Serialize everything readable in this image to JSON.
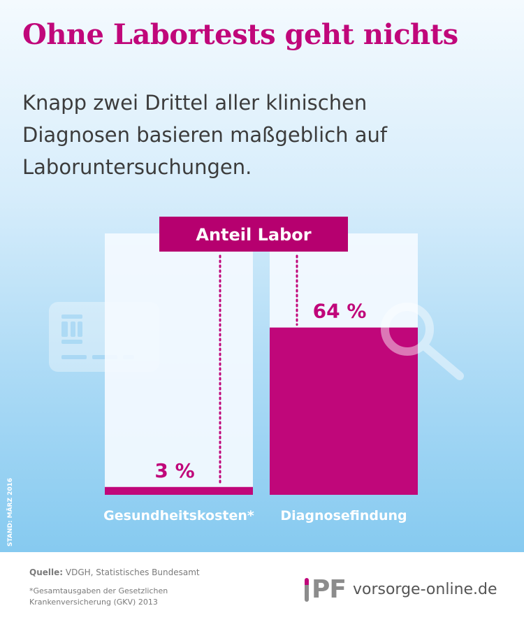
{
  "title": "Ohne Labortests geht nichts",
  "subtitle": "Knapp zwei Drittel aller klinischen Diagnosen basieren maßgeblich auf Laboruntersuchungen.",
  "chart_data": {
    "type": "bar",
    "legend_label": "Anteil Labor",
    "categories": [
      "Gesundheitskosten*",
      "Diagnosefindung"
    ],
    "values": [
      3,
      64
    ],
    "value_labels": [
      "3 %",
      "64 %"
    ],
    "unit": "%",
    "ylim": [
      0,
      100
    ],
    "grid": false
  },
  "stand": "STAND: MÄRZ 2016",
  "footer": {
    "source_label": "Quelle:",
    "source_text": "VDGH, Statistisches Bundesamt",
    "footnote": "*Gesamtausgaben der Gesetzlichen Krankenversicherung (GKV) 2013",
    "logo_text": "PF",
    "website": "vorsorge-online.de"
  },
  "colors": {
    "accent": "#c0077a",
    "column_background": "#f4faff",
    "sky_top": "#f4fafe",
    "sky_bottom": "#86caf0",
    "label_white": "#ffffff"
  },
  "icons": [
    "credit-card-icon",
    "magnifier-icon"
  ]
}
